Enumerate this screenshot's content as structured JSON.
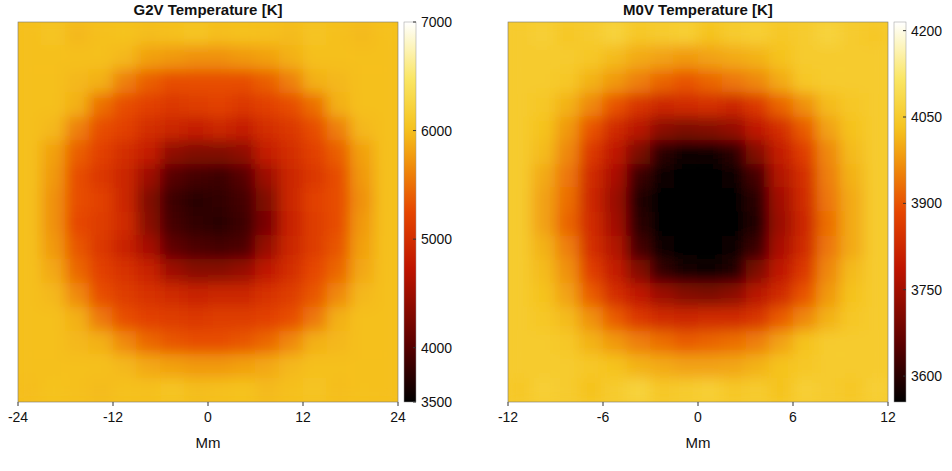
{
  "chart_data": [
    {
      "type": "heatmap",
      "title": "G2V Temperature [K]",
      "x_label": "Mm",
      "xlim": [
        -24,
        24
      ],
      "ylim": [
        -24,
        24
      ],
      "xticks": [
        -24,
        -12,
        0,
        12,
        24
      ],
      "tick_labels": "x",
      "color_range": [
        3500,
        7000
      ],
      "color_ticks": [
        3500,
        4000,
        5000,
        6000,
        7000
      ],
      "values": [
        [
          6000,
          6050,
          5950,
          6000,
          6020,
          5980,
          6000,
          6050,
          5990,
          6010,
          6000,
          5970,
          6030,
          6000,
          5960,
          6010
        ],
        [
          6000,
          6000,
          6000,
          6000,
          5950,
          5800,
          5750,
          5700,
          5700,
          5750,
          5800,
          5900,
          6000,
          6000,
          6000,
          6000
        ],
        [
          6000,
          6000,
          5950,
          5900,
          5600,
          5400,
          5300,
          5300,
          5300,
          5300,
          5400,
          5600,
          5900,
          5950,
          6000,
          6000
        ],
        [
          6000,
          6000,
          5900,
          5500,
          5300,
          5200,
          5100,
          5150,
          5200,
          5100,
          5200,
          5300,
          5500,
          5900,
          6000,
          6000
        ],
        [
          6000,
          5950,
          5600,
          5300,
          5200,
          5000,
          4900,
          4800,
          4900,
          4800,
          5000,
          5100,
          5300,
          5600,
          5950,
          6000
        ],
        [
          6000,
          5800,
          5400,
          5200,
          5000,
          4800,
          4400,
          4300,
          4300,
          4400,
          4800,
          5000,
          5200,
          5400,
          5800,
          6000
        ],
        [
          6000,
          5750,
          5300,
          5100,
          4900,
          4500,
          4000,
          3900,
          3850,
          4000,
          4500,
          4900,
          5100,
          5300,
          5750,
          6000
        ],
        [
          6000,
          5700,
          5300,
          5200,
          4900,
          4300,
          3850,
          3750,
          3800,
          3900,
          4300,
          4900,
          5200,
          5300,
          5700,
          6000
        ],
        [
          6000,
          5700,
          5250,
          5150,
          4950,
          4350,
          3900,
          3800,
          3750,
          3850,
          4250,
          4850,
          5150,
          5300,
          5750,
          6000
        ],
        [
          6000,
          5750,
          5350,
          5100,
          4850,
          4550,
          4050,
          3950,
          3900,
          3950,
          4450,
          4900,
          5150,
          5350,
          5800,
          6000
        ],
        [
          6000,
          5850,
          5450,
          5200,
          5050,
          4850,
          4500,
          4350,
          4350,
          4450,
          4750,
          5000,
          5250,
          5450,
          5850,
          6000
        ],
        [
          6000,
          5950,
          5650,
          5300,
          5150,
          5050,
          4950,
          4850,
          4900,
          4900,
          5050,
          5150,
          5350,
          5650,
          5950,
          6000
        ],
        [
          6000,
          6000,
          5900,
          5550,
          5300,
          5200,
          5150,
          5100,
          5150,
          5150,
          5200,
          5300,
          5550,
          5900,
          6000,
          6000
        ],
        [
          6000,
          6000,
          5950,
          5900,
          5650,
          5450,
          5350,
          5300,
          5300,
          5350,
          5450,
          5650,
          5900,
          5950,
          6000,
          6000
        ],
        [
          6000,
          6000,
          6000,
          6000,
          5950,
          5850,
          5800,
          5750,
          5750,
          5800,
          5850,
          5950,
          6000,
          6000,
          6000,
          6000
        ],
        [
          5990,
          6020,
          6000,
          5970,
          6010,
          6000,
          6040,
          5980,
          6000,
          6020,
          5960,
          6000,
          6030,
          5990,
          6010,
          6000
        ]
      ]
    },
    {
      "type": "heatmap",
      "title": "M0V Temperature [K]",
      "x_label": "Mm",
      "xlim": [
        -12,
        12
      ],
      "ylim": [
        -12,
        12
      ],
      "xticks": [
        -12,
        -6,
        0,
        6,
        12
      ],
      "tick_labels": "x",
      "color_range": [
        3555,
        4215
      ],
      "color_ticks": [
        3600,
        3750,
        3900,
        4050,
        4200
      ],
      "values": [
        [
          4050,
          4060,
          4040,
          4050,
          4070,
          4040,
          4050,
          4060,
          4030,
          4050,
          4060,
          4040,
          4050,
          4070,
          4050,
          4040
        ],
        [
          4050,
          4050,
          4050,
          4040,
          4020,
          4000,
          3990,
          3980,
          3990,
          4000,
          4010,
          4030,
          4050,
          4050,
          4050,
          4050
        ],
        [
          4050,
          4050,
          4040,
          4010,
          3980,
          3950,
          3920,
          3900,
          3920,
          3940,
          3960,
          4000,
          4040,
          4050,
          4050,
          4050
        ],
        [
          4050,
          4040,
          4010,
          3960,
          3900,
          3850,
          3820,
          3830,
          3840,
          3820,
          3860,
          3920,
          3970,
          4020,
          4040,
          4050
        ],
        [
          4050,
          4030,
          3980,
          3900,
          3830,
          3780,
          3720,
          3700,
          3710,
          3730,
          3790,
          3840,
          3910,
          3990,
          4030,
          4050
        ],
        [
          4050,
          4020,
          3960,
          3860,
          3790,
          3700,
          3600,
          3570,
          3570,
          3600,
          3710,
          3800,
          3870,
          3960,
          4020,
          4050
        ],
        [
          4050,
          4000,
          3940,
          3830,
          3760,
          3620,
          3565,
          3560,
          3560,
          3565,
          3630,
          3770,
          3840,
          3950,
          4010,
          4050
        ],
        [
          4050,
          3990,
          3930,
          3820,
          3740,
          3590,
          3560,
          3560,
          3560,
          3560,
          3600,
          3750,
          3830,
          3940,
          4000,
          4050
        ],
        [
          4050,
          3990,
          3920,
          3830,
          3750,
          3600,
          3560,
          3560,
          3560,
          3560,
          3590,
          3740,
          3820,
          3930,
          4000,
          4050
        ],
        [
          4050,
          4010,
          3950,
          3840,
          3770,
          3630,
          3565,
          3560,
          3560,
          3565,
          3620,
          3760,
          3830,
          3940,
          4000,
          4050
        ],
        [
          4050,
          4020,
          3970,
          3870,
          3800,
          3710,
          3610,
          3575,
          3570,
          3590,
          3700,
          3790,
          3860,
          3960,
          4020,
          4050
        ],
        [
          4050,
          4030,
          3990,
          3910,
          3840,
          3790,
          3740,
          3710,
          3700,
          3720,
          3780,
          3830,
          3900,
          3980,
          4030,
          4050
        ],
        [
          4050,
          4040,
          4020,
          3970,
          3910,
          3860,
          3830,
          3820,
          3830,
          3830,
          3850,
          3910,
          3960,
          4010,
          4040,
          4050
        ],
        [
          4050,
          4050,
          4040,
          4010,
          3980,
          3950,
          3930,
          3910,
          3920,
          3930,
          3950,
          3990,
          4030,
          4050,
          4050,
          4050
        ],
        [
          4050,
          4050,
          4050,
          4040,
          4030,
          4010,
          4000,
          3990,
          3990,
          3995,
          4010,
          4030,
          4040,
          4050,
          4050,
          4050
        ],
        [
          4040,
          4060,
          4050,
          4030,
          4050,
          4070,
          4040,
          4050,
          4060,
          4040,
          4050,
          4030,
          4060,
          4050,
          4040,
          4060
        ]
      ]
    }
  ]
}
